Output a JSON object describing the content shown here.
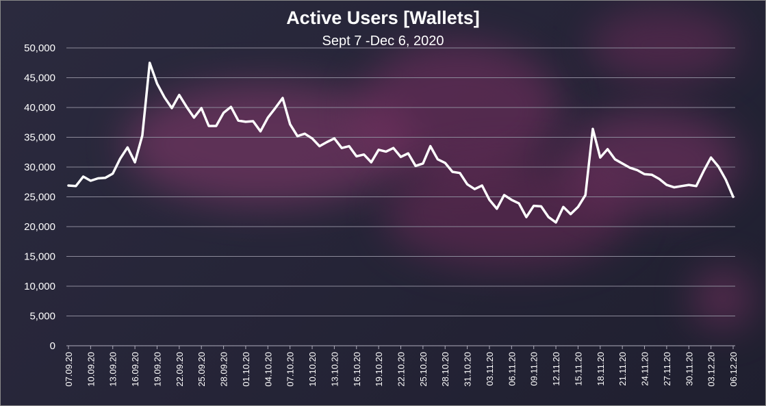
{
  "chart_data": {
    "type": "line",
    "title": "Active Users [Wallets]",
    "subtitle": "Sept 7 -Dec 6, 2020",
    "xlabel": "",
    "ylabel": "",
    "ylim": [
      0,
      50000
    ],
    "grid": true,
    "line_color": "#ffffff",
    "yticks": [
      "0",
      "5,000",
      "10,000",
      "15,000",
      "20,000",
      "25,000",
      "30,000",
      "35,000",
      "40,000",
      "45,000",
      "50,000"
    ],
    "xtick_labels": [
      "07.09.20",
      "10.09.20",
      "13.09.20",
      "16.09.20",
      "19.09.20",
      "22.09.20",
      "25.09.20",
      "28.09.20",
      "01.10.20",
      "04.10.20",
      "07.10.20",
      "10.10.20",
      "13.10.20",
      "16.10.20",
      "19.10.20",
      "22.10.20",
      "25.10.20",
      "28.10.20",
      "31.10.20",
      "03.11.20",
      "06.11.20",
      "09.11.20",
      "12.11.20",
      "15.11.20",
      "18.11.20",
      "21.11.20",
      "24.11.20",
      "27.11.20",
      "30.11.20",
      "03.12.20",
      "06.12.20"
    ],
    "xtick_every": 3,
    "series": [
      {
        "values": [
          26900,
          26800,
          28400,
          27700,
          28100,
          28200,
          28900,
          31400,
          33300,
          30800,
          35300,
          47500,
          44000,
          41700,
          39900,
          42100,
          40100,
          38300,
          39900,
          36900,
          36900,
          39100,
          40100,
          37800,
          37600,
          37700,
          36000,
          38300,
          39900,
          41600,
          37200,
          35200,
          35600,
          34800,
          33500,
          34200,
          34800,
          33200,
          33500,
          31800,
          32100,
          30800,
          32900,
          32600,
          33200,
          31700,
          32300,
          30200,
          30600,
          33500,
          31300,
          30700,
          29200,
          29000,
          27100,
          26300,
          26900,
          24500,
          23000,
          25300,
          24500,
          23900,
          21600,
          23500,
          23400,
          21600,
          20700,
          23300,
          22100,
          23300,
          25300,
          36400,
          31600,
          33000,
          31300,
          30600,
          29900,
          29500,
          28800,
          28700,
          28000,
          27000,
          26600,
          26800,
          27000,
          26800,
          29300,
          31600,
          30100,
          27900,
          25000
        ]
      }
    ]
  }
}
